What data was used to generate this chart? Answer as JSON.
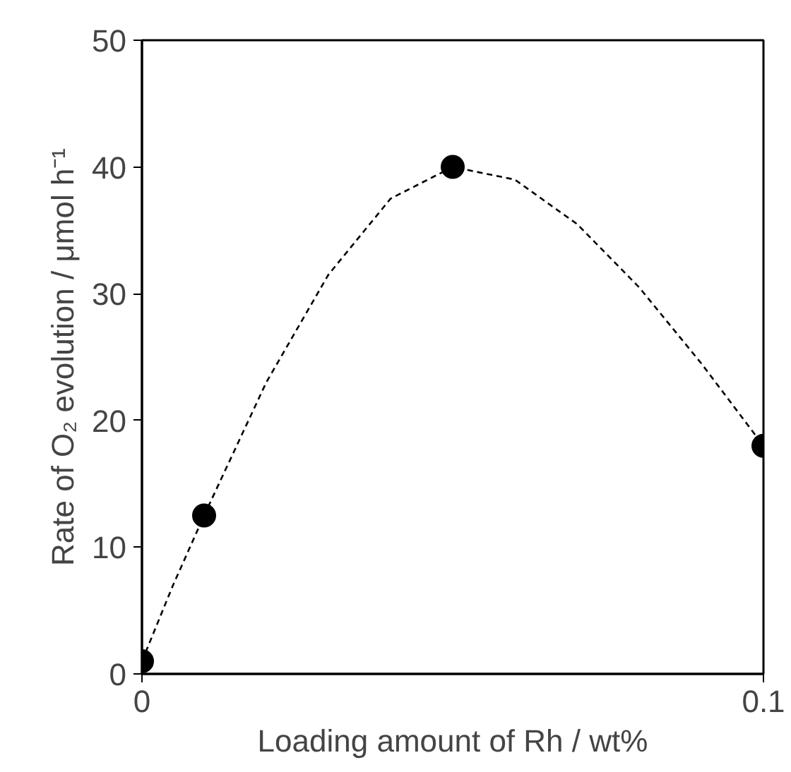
{
  "chart_data": {
    "type": "scatter",
    "xlabel": "Loading amount of Rh / wt%",
    "ylabel": "Rate of O₂ evolution / μmol h⁻¹",
    "xlim": [
      0,
      0.1
    ],
    "ylim": [
      0,
      50
    ],
    "xticks": [
      0,
      0.1
    ],
    "yticks": [
      0,
      10,
      20,
      30,
      40,
      50
    ],
    "grid": false,
    "marker": "circle",
    "series": [
      {
        "type": "line",
        "color": "#000000",
        "line_style": "dashed",
        "marker": "none",
        "x": [
          0,
          0.005,
          0.01,
          0.02,
          0.03,
          0.04,
          0.05,
          0.06,
          0.07,
          0.08,
          0.09,
          0.1
        ],
        "values": [
          1,
          7,
          12.5,
          23,
          31.5,
          37.5,
          40,
          39,
          35.5,
          30.5,
          24.5,
          18
        ]
      },
      {
        "color": "#000000",
        "x": [
          0,
          0.01,
          0.05,
          0.1
        ],
        "values": [
          1,
          12.5,
          40,
          18
        ]
      }
    ]
  }
}
